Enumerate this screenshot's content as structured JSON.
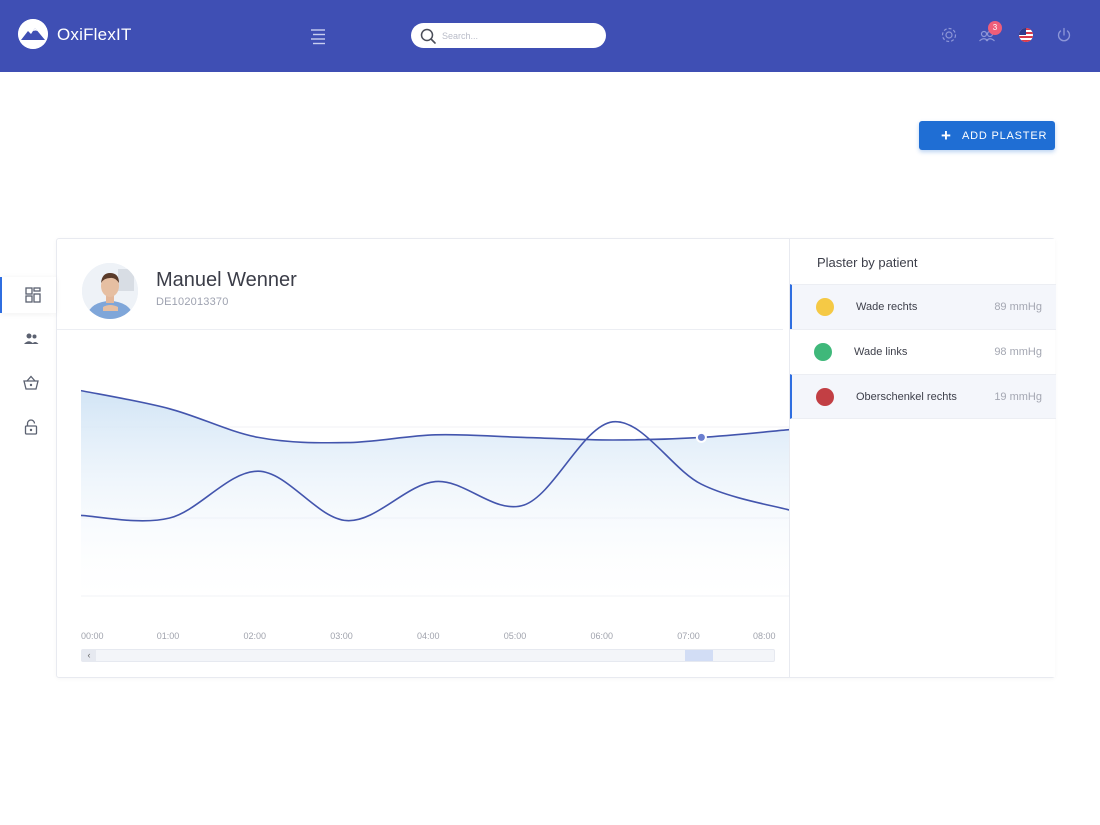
{
  "header": {
    "brand": "OxiFlexIT",
    "search_placeholder": "Search...",
    "notification_count": "3"
  },
  "actions": {
    "add_plaster_label": "ADD PLASTER"
  },
  "sidebar": {
    "items": [
      {
        "icon": "dashboard-icon",
        "active": true
      },
      {
        "icon": "users-icon",
        "active": false
      },
      {
        "icon": "basket-icon",
        "active": false
      },
      {
        "icon": "lock-icon",
        "active": false
      }
    ]
  },
  "patient": {
    "name": "Manuel Wenner",
    "id": "DE102013370"
  },
  "chart_data": {
    "type": "area",
    "x": [
      "00:00",
      "01:00",
      "02:00",
      "03:00",
      "04:00",
      "05:00",
      "06:00",
      "07:00",
      "08:00"
    ],
    "series": [
      {
        "values": [
          0.84,
          0.77,
          0.66,
          0.64,
          0.67,
          0.66,
          0.65,
          0.66,
          0.69
        ],
        "color": "#4355ad"
      },
      {
        "values": [
          0.36,
          0.35,
          0.53,
          0.34,
          0.49,
          0.4,
          0.72,
          0.48,
          0.38
        ],
        "color": "#4355ad"
      }
    ],
    "ylim": [
      0,
      1
    ],
    "highlight_index": 7
  },
  "plasters": {
    "title": "Plaster by patient",
    "items": [
      {
        "name": "Wade rechts",
        "value": "89 mmHg",
        "color": "#f5c945"
      },
      {
        "name": "Wade links",
        "value": "98 mmHg",
        "color": "#3fb87a"
      },
      {
        "name": "Oberschenkel rechts",
        "value": "19 mmHg",
        "color": "#c23f44"
      }
    ]
  }
}
